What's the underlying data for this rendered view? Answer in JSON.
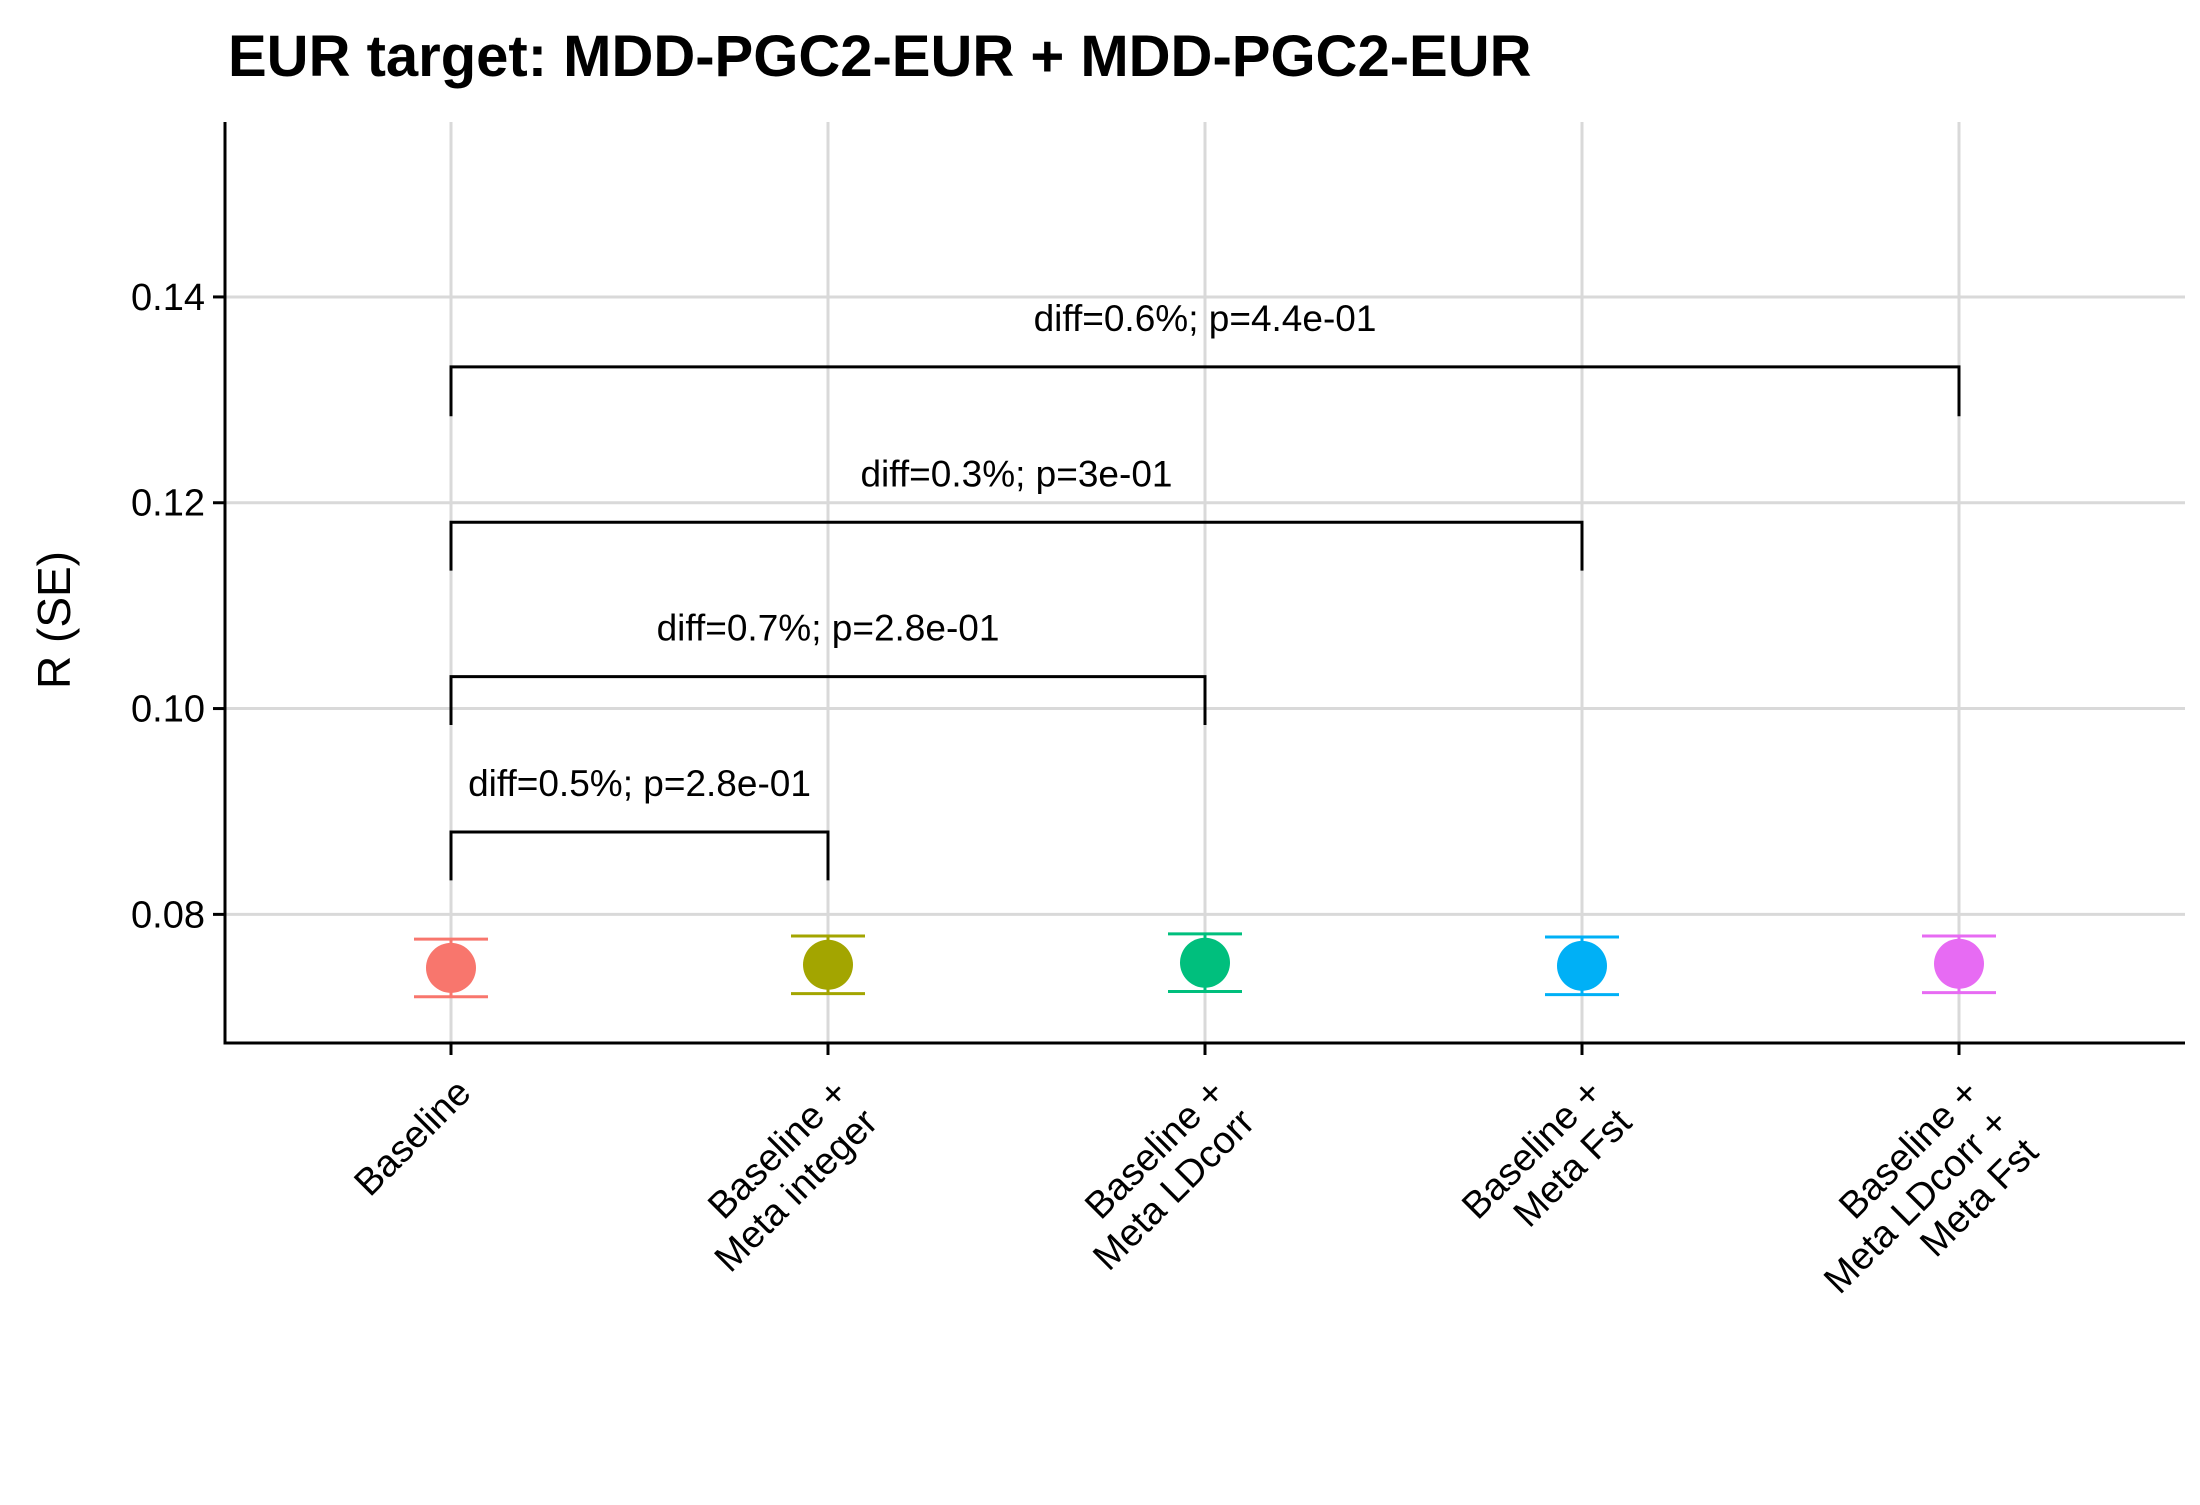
{
  "chart_data": {
    "type": "scatter",
    "title": "EUR target: MDD-PGC2-EUR + MDD-PGC2-EUR",
    "xlabel": "",
    "ylabel": "R (SE)",
    "ylim": [
      0.0675,
      0.157
    ],
    "yticks": [
      "0.08",
      "0.10",
      "0.12",
      "0.14"
    ],
    "grid": true,
    "categories": [
      [
        "Baseline"
      ],
      [
        "Baseline +",
        "Meta integer"
      ],
      [
        "Baseline +",
        "Meta LDcorr"
      ],
      [
        "Baseline +",
        "Meta Fst"
      ],
      [
        "Baseline +",
        "Meta LDcorr +",
        "Meta Fst"
      ]
    ],
    "points": [
      {
        "value": 0.0748,
        "se_low": 0.072,
        "se_high": 0.0776,
        "color": "#F8766D"
      },
      {
        "value": 0.0751,
        "se_low": 0.0723,
        "se_high": 0.0779,
        "color": "#A3A500"
      },
      {
        "value": 0.0753,
        "se_low": 0.0725,
        "se_high": 0.0781,
        "color": "#00BF7D"
      },
      {
        "value": 0.075,
        "se_low": 0.0722,
        "se_high": 0.0778,
        "color": "#00B0F6"
      },
      {
        "value": 0.0752,
        "se_low": 0.0724,
        "se_high": 0.0779,
        "color": "#E76BF3"
      }
    ],
    "comparisons": [
      {
        "from": 0,
        "to": 1,
        "y": 0.088,
        "tick_bottom": 0.0833,
        "label": "diff=0.5%; p=2.8e-01"
      },
      {
        "from": 0,
        "to": 2,
        "y": 0.1031,
        "tick_bottom": 0.0984,
        "label": "diff=0.7%; p=2.8e-01"
      },
      {
        "from": 0,
        "to": 3,
        "y": 0.1181,
        "tick_bottom": 0.1134,
        "label": "diff=0.3%; p=3e-01"
      },
      {
        "from": 0,
        "to": 4,
        "y": 0.1332,
        "tick_bottom": 0.1284,
        "label": "diff=0.6%; p=4.4e-01"
      }
    ]
  }
}
